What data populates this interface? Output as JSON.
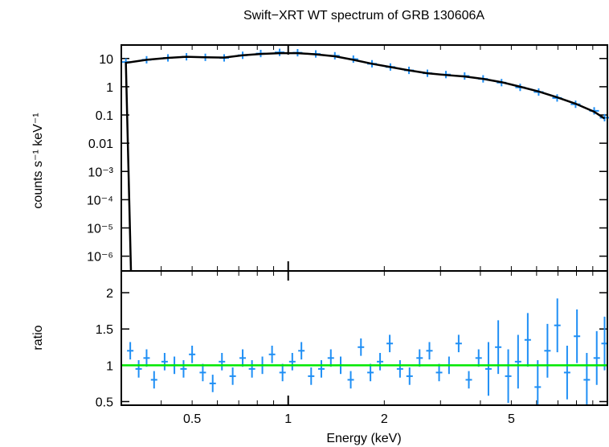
{
  "chart_data": [
    {
      "panel": "spectrum",
      "type": "scatter",
      "title": "Swift−XRT WT spectrum of GRB 130606A",
      "xlabel": "",
      "ylabel": "counts s⁻¹ keV⁻¹",
      "x_scale": "log",
      "y_scale": "log",
      "xlim": [
        0.3,
        10
      ],
      "ylim": [
        3e-07,
        30
      ],
      "y_tick_labels": [
        "10",
        "1",
        "0.1",
        "0.01",
        "10⁻³",
        "10⁻⁴",
        "10⁻⁵",
        "10⁻⁶"
      ],
      "y_tick_values": [
        10,
        1,
        0.1,
        0.01,
        0.001,
        0.0001,
        1e-05,
        1e-06
      ],
      "series": [
        {
          "role": "data",
          "color": "#1f8ff5",
          "x": [
            0.31,
            0.36,
            0.42,
            0.48,
            0.55,
            0.63,
            0.72,
            0.82,
            0.94,
            1.07,
            1.22,
            1.4,
            1.6,
            1.83,
            2.09,
            2.39,
            2.73,
            3.12,
            3.57,
            4.08,
            4.66,
            5.33,
            6.09,
            6.96,
            7.95,
            9.09,
            9.8
          ],
          "y": [
            7.5,
            9.0,
            10.5,
            11.5,
            11.0,
            10.5,
            13.0,
            15.0,
            16.5,
            16.0,
            14.5,
            12.5,
            9.5,
            6.5,
            5.0,
            3.8,
            3.0,
            2.7,
            2.4,
            1.9,
            1.4,
            0.95,
            0.65,
            0.4,
            0.24,
            0.14,
            0.08
          ]
        },
        {
          "role": "model",
          "color": "#000000",
          "x": [
            0.31,
            0.36,
            0.42,
            0.48,
            0.55,
            0.63,
            0.72,
            0.82,
            0.94,
            1.07,
            1.22,
            1.4,
            1.6,
            1.83,
            2.09,
            2.39,
            2.73,
            3.12,
            3.57,
            4.08,
            4.66,
            5.33,
            6.09,
            6.96,
            7.95,
            9.09,
            9.8
          ],
          "y": [
            7.0,
            9.0,
            10.5,
            11.5,
            11.0,
            10.8,
            13.0,
            14.5,
            15.5,
            15.5,
            14.0,
            12.0,
            9.0,
            6.5,
            5.0,
            3.8,
            3.0,
            2.6,
            2.3,
            1.9,
            1.45,
            1.0,
            0.68,
            0.42,
            0.25,
            0.13,
            0.075
          ]
        }
      ]
    },
    {
      "panel": "ratio",
      "type": "scatter",
      "xlabel": "Energy (keV)",
      "ylabel": "ratio",
      "x_scale": "log",
      "xlim": [
        0.3,
        10
      ],
      "ylim": [
        0.45,
        2.3
      ],
      "x_tick_labels": [
        "0.5",
        "1",
        "2",
        "5"
      ],
      "x_tick_values": [
        0.5,
        1,
        2,
        5
      ],
      "y_tick_labels": [
        "0.5",
        "1",
        "1.5",
        "2"
      ],
      "y_tick_values": [
        0.5,
        1,
        1.5,
        2
      ],
      "reference_line": {
        "y": 1,
        "color": "#00e800"
      },
      "series": [
        {
          "role": "data",
          "color": "#1f8ff5",
          "x": [
            0.32,
            0.34,
            0.36,
            0.38,
            0.41,
            0.44,
            0.47,
            0.5,
            0.54,
            0.58,
            0.62,
            0.67,
            0.72,
            0.77,
            0.83,
            0.89,
            0.96,
            1.03,
            1.1,
            1.18,
            1.27,
            1.36,
            1.46,
            1.57,
            1.69,
            1.81,
            1.94,
            2.08,
            2.24,
            2.4,
            2.58,
            2.77,
            2.97,
            3.19,
            3.42,
            3.68,
            3.95,
            4.24,
            4.55,
            4.89,
            5.25,
            5.63,
            6.05,
            6.49,
            6.97,
            7.48,
            8.03,
            8.62,
            9.26,
            9.8
          ],
          "y": [
            1.2,
            0.95,
            1.1,
            0.8,
            1.05,
            1.0,
            0.95,
            1.15,
            0.9,
            0.75,
            1.05,
            0.85,
            1.1,
            0.95,
            1.0,
            1.15,
            0.9,
            1.05,
            1.2,
            0.85,
            0.95,
            1.1,
            1.0,
            0.8,
            1.25,
            0.9,
            1.05,
            1.3,
            0.95,
            0.85,
            1.1,
            1.2,
            0.9,
            1.0,
            1.3,
            0.8,
            1.1,
            0.95,
            1.25,
            0.85,
            1.05,
            1.35,
            0.7,
            1.2,
            1.55,
            0.9,
            1.4,
            0.8,
            1.1,
            1.3
          ]
        }
      ]
    }
  ]
}
